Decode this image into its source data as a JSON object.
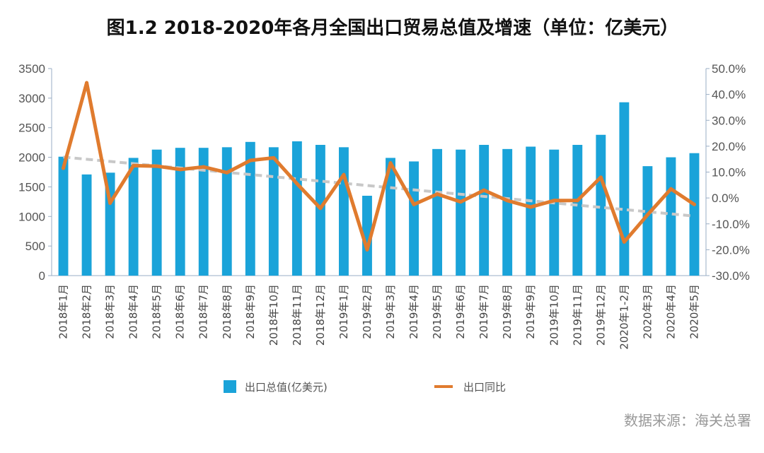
{
  "title": "图1.2 2018-2020年各月全国出口贸易总值及增速（单位：亿美元）",
  "source": "数据来源：海关总署",
  "colors": {
    "bar": "#1aa3d9",
    "line": "#e07b2e",
    "trend": "#c8c8c8",
    "axis": "#9aaec4"
  },
  "chart_data": {
    "type": "bar",
    "title": "图1.2 2018-2020年各月全国出口贸易总值及增速（单位：亿美元）",
    "categories": [
      "2018年1月",
      "2018年2月",
      "2018年3月",
      "2018年4月",
      "2018年5月",
      "2018年6月",
      "2018年7月",
      "2018年8月",
      "2018年9月",
      "2018年10月",
      "2018年11月",
      "2018年12月",
      "2019年1月",
      "2019年2月",
      "2019年3月",
      "2019年4月",
      "2019年5月",
      "2019年6月",
      "2019年7月",
      "2019年8月",
      "2019年9月",
      "2019年10月",
      "2019年11月",
      "2019年12月",
      "2020年1-2月",
      "2020年3月",
      "2020年4月",
      "2020年5月"
    ],
    "series": [
      {
        "name": "出口总值(亿美元)",
        "type": "bar",
        "axis": "left",
        "values": [
          2010,
          1710,
          1740,
          1990,
          2130,
          2160,
          2160,
          2170,
          2260,
          2170,
          2270,
          2210,
          2170,
          1350,
          1990,
          1930,
          2140,
          2130,
          2210,
          2140,
          2180,
          2130,
          2210,
          2380,
          2930,
          1850,
          2000,
          2070
        ]
      },
      {
        "name": "出口同比",
        "type": "line",
        "axis": "right",
        "values": [
          11.5,
          44.5,
          -2.0,
          12.5,
          12.3,
          11.0,
          12.0,
          9.8,
          14.5,
          15.5,
          5.5,
          -4.0,
          9.0,
          -20.0,
          13.5,
          -2.5,
          1.5,
          -1.5,
          3.0,
          -1.0,
          -3.5,
          -1.0,
          -1.0,
          8.0,
          -17.0,
          -6.5,
          3.5,
          -2.5
        ]
      }
    ],
    "trend": {
      "start": 15.8,
      "end": -7.0
    },
    "ylim_left": [
      0,
      3500
    ],
    "yticks_left": [
      "0",
      "500",
      "1000",
      "1500",
      "2000",
      "2500",
      "3000",
      "3500"
    ],
    "ylim_right": [
      -30,
      50
    ],
    "yticks_right": [
      "-30.0%",
      "-20.0%",
      "-10.0%",
      "0.0%",
      "10.0%",
      "20.0%",
      "30.0%",
      "40.0%",
      "50.0%"
    ],
    "legend": [
      "出口总值(亿美元)",
      "出口同比"
    ],
    "legend_position": "bottom",
    "grid": false
  }
}
